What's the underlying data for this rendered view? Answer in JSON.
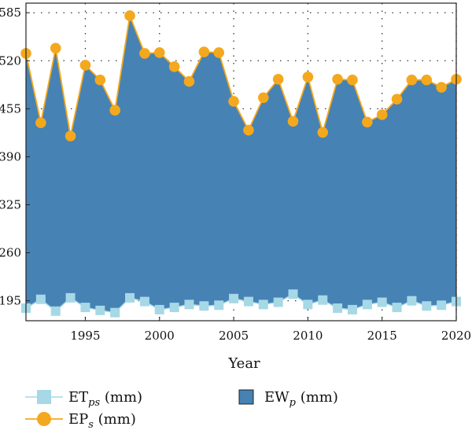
{
  "chart_data": {
    "type": "area",
    "xlabel": "Year",
    "ylabel": "",
    "xlim": [
      1991,
      2020
    ],
    "ylim": [
      168,
      598
    ],
    "x_ticks": [
      "1995",
      "2000",
      "2005",
      "2010",
      "2015",
      "2020"
    ],
    "y_ticks": [
      "195",
      "260",
      "325",
      "390",
      "455",
      "520",
      "585"
    ],
    "grid": true,
    "legend_position": "bottom",
    "x": [
      1991,
      1992,
      1993,
      1994,
      1995,
      1996,
      1997,
      1998,
      1999,
      2000,
      2001,
      2002,
      2003,
      2004,
      2005,
      2006,
      2007,
      2008,
      2009,
      2010,
      2011,
      2012,
      2013,
      2014,
      2015,
      2016,
      2017,
      2018,
      2019,
      2020
    ],
    "series": [
      {
        "name_main": "ET",
        "name_sub": "ps",
        "name_unit": " (mm)",
        "kind": "line-square",
        "color": "#a6d8e6",
        "values": [
          185,
          197,
          181,
          199,
          186,
          182,
          179,
          199,
          194,
          183,
          186,
          190,
          188,
          189,
          198,
          194,
          190,
          193,
          204,
          190,
          196,
          185,
          183,
          190,
          193,
          186,
          195,
          188,
          189,
          194
        ]
      },
      {
        "name_main": "EP",
        "name_sub": "s",
        "name_unit": " (mm)",
        "kind": "line-circle",
        "color": "#f4a81d",
        "values": [
          530,
          436,
          537,
          418,
          514,
          494,
          453,
          581,
          530,
          531,
          512,
          492,
          532,
          531,
          465,
          426,
          470,
          495,
          438,
          498,
          423,
          495,
          494,
          437,
          447,
          468,
          494,
          494,
          484,
          495
        ]
      },
      {
        "name_main": "EW",
        "name_sub": "p",
        "name_unit": " (mm)",
        "kind": "area",
        "color": "#4682b4",
        "note_on_values": "area spans between ETps and EPs"
      }
    ]
  }
}
